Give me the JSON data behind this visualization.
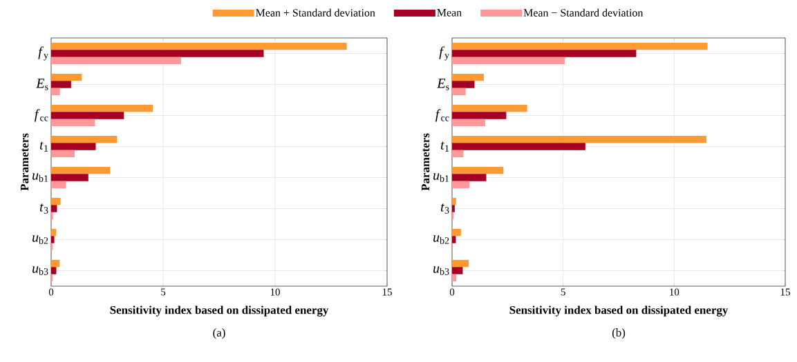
{
  "chart_data": [
    {
      "type": "bar",
      "orientation": "horizontal",
      "categories": [
        "*f*$_{y}$",
        "*E*$_{s}$",
        "*f*$_{cc}$",
        "*t*$_{1}$",
        "*u*$_{b1}$",
        "*t*$_{3}$",
        "*u*$_{b2}$",
        "*u*$_{b3}$"
      ],
      "series": [
        {
          "name": "Mean + Standard deviation",
          "color": "#ff9933",
          "values": [
            13.2,
            1.37,
            4.54,
            2.94,
            2.63,
            0.42,
            0.22,
            0.38
          ]
        },
        {
          "name": "Mean",
          "color": "#a50021",
          "values": [
            9.49,
            0.89,
            3.25,
            1.99,
            1.66,
            0.26,
            0.14,
            0.23
          ]
        },
        {
          "name": "Mean − Standard deviation",
          "color": "#ff9999",
          "values": [
            5.8,
            0.39,
            1.95,
            1.05,
            0.66,
            0.08,
            0.07,
            0.07
          ]
        }
      ],
      "xlim": [
        0,
        15
      ],
      "xticks": [
        0,
        5,
        10,
        15
      ],
      "xlabel": "Sensitivity index based on dissipated energy",
      "ylabel": "Parameters",
      "grid": true,
      "legend": "top",
      "annotations": [
        "(a)"
      ]
    },
    {
      "type": "bar",
      "orientation": "horizontal",
      "categories": [
        "*f*$_{y}$",
        "*E*$_{s}$",
        "*f*$_{cc}$",
        "*t*$_{1}$",
        "*u*$_{b1}$",
        "*t*$_{3}$",
        "*u*$_{b2}$",
        "*u*$_{b3}$"
      ],
      "series": [
        {
          "color": "#ff9933",
          "values": [
            11.5,
            1.43,
            3.38,
            11.45,
            2.31,
            0.18,
            0.4,
            0.75
          ]
        },
        {
          "color": "#a50021",
          "values": [
            8.29,
            1.01,
            2.44,
            6.0,
            1.54,
            0.12,
            0.17,
            0.48
          ]
        },
        {
          "color": "#ff9999",
          "values": [
            5.07,
            0.61,
            1.49,
            0.51,
            0.78,
            0.07,
            0.02,
            0.19
          ]
        }
      ],
      "xlim": [
        0,
        15
      ],
      "xticks": [
        0,
        5,
        10,
        15
      ],
      "xlabel": "Sensitivity index based on dissipated energy",
      "ylabel": "Parameters",
      "grid": true,
      "annotations": [
        "(b)"
      ]
    }
  ]
}
